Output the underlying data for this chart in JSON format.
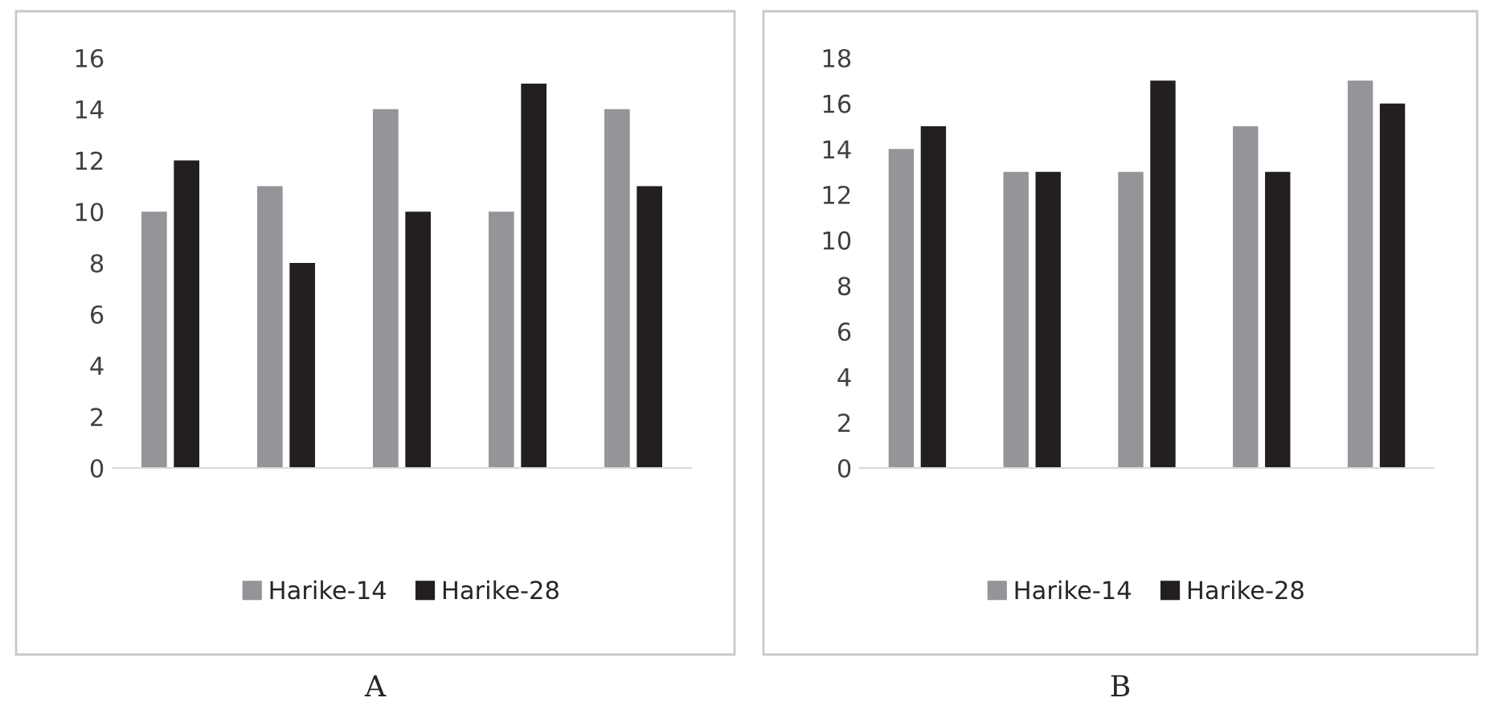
{
  "chart_data": [
    {
      "type": "bar",
      "xlabel": "A",
      "categories": [
        null,
        null,
        null,
        null,
        null
      ],
      "ylim": [
        0,
        16
      ],
      "yticks": [
        0,
        2,
        4,
        6,
        8,
        10,
        12,
        14,
        16
      ],
      "grid": false,
      "legend": "bottom",
      "series": [
        {
          "name": "Harike-14",
          "color": "#939598",
          "values": [
            10,
            11,
            14,
            10,
            14
          ]
        },
        {
          "name": "Harike-28",
          "color": "#231f20",
          "values": [
            12,
            8,
            10,
            15,
            11
          ]
        }
      ]
    },
    {
      "type": "bar",
      "xlabel": "B",
      "categories": [
        null,
        null,
        null,
        null,
        null
      ],
      "ylim": [
        0,
        18
      ],
      "yticks": [
        0,
        2,
        4,
        6,
        8,
        10,
        12,
        14,
        16,
        18
      ],
      "grid": false,
      "legend": "bottom",
      "series": [
        {
          "name": "Harike-14",
          "color": "#939598",
          "values": [
            14,
            13,
            13,
            15,
            17
          ]
        },
        {
          "name": "Harike-28",
          "color": "#231f20",
          "values": [
            15,
            13,
            17,
            13,
            16
          ]
        }
      ]
    }
  ]
}
